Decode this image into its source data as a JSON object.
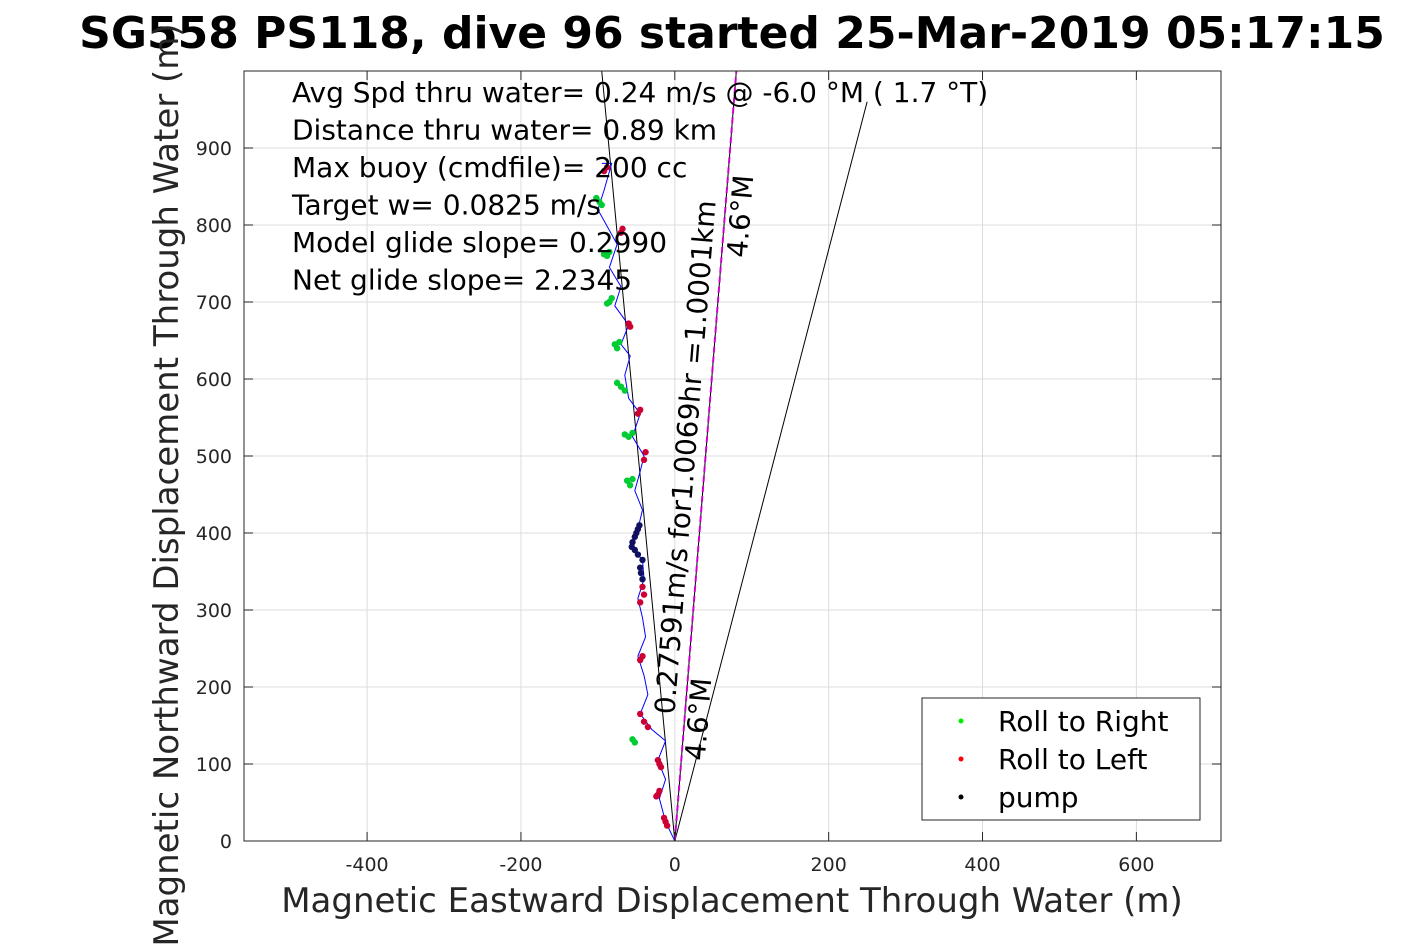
{
  "chart_data": {
    "type": "line",
    "title": "SG558 PS118, dive 96 started 25-Mar-2019 05:17:15",
    "xlabel": "Magnetic Eastward Displacement Through Water (m)",
    "ylabel": "Magnetic Northward Displacement Through Water (m)",
    "xlim": [
      -560,
      710
    ],
    "ylim": [
      0,
      1000
    ],
    "xticks": [
      -400,
      -200,
      0,
      200,
      400,
      600
    ],
    "xtick_labels": [
      "-400",
      "-200",
      "0",
      "200",
      "400",
      "600"
    ],
    "yticks": [
      0,
      100,
      200,
      300,
      400,
      500,
      600,
      700,
      800,
      900
    ],
    "ytick_labels": [
      "0",
      "100",
      "200",
      "300",
      "400",
      "500",
      "600",
      "700",
      "800",
      "900"
    ],
    "grid": true,
    "annotations": [
      "Avg Spd thru water=  0.24 m/s @  -6.0 °M (  1.7 °T)",
      "Distance thru water=  0.89 km",
      "Max buoy (cmdfile)= 200 cc",
      "Target w= 0.0825 m/s",
      "Model glide slope= 0.2990",
      "Net glide slope= 2.2345"
    ],
    "rotated_labels": {
      "current_speed": "0.27591m/s for1.0069hr =1.0001km",
      "heading_upper": "4.6°M",
      "heading_lower": "4.6°M"
    },
    "reference_lines": [
      {
        "from": [
          0,
          0
        ],
        "to": [
          -95,
          1000
        ],
        "color": "#000000"
      },
      {
        "from": [
          0,
          0
        ],
        "to": [
          80,
          1000
        ],
        "color": "#000000"
      },
      {
        "from": [
          0,
          0
        ],
        "to": [
          250,
          960
        ],
        "color": "#000000"
      },
      {
        "from": [
          0,
          0
        ],
        "to": [
          80,
          1000
        ],
        "color": "#cc00cc",
        "style": "dashed"
      }
    ],
    "track": {
      "name": "track",
      "color": "#0000ff",
      "points": [
        [
          0,
          0
        ],
        [
          -12,
          25
        ],
        [
          -20,
          55
        ],
        [
          -12,
          80
        ],
        [
          -22,
          105
        ],
        [
          -12,
          130
        ],
        [
          -30,
          145
        ],
        [
          -45,
          165
        ],
        [
          -35,
          190
        ],
        [
          -40,
          215
        ],
        [
          -48,
          240
        ],
        [
          -38,
          265
        ],
        [
          -42,
          290
        ],
        [
          -48,
          315
        ],
        [
          -40,
          340
        ],
        [
          -42,
          365
        ],
        [
          -55,
          380
        ],
        [
          -48,
          405
        ],
        [
          -42,
          430
        ],
        [
          -52,
          455
        ],
        [
          -45,
          480
        ],
        [
          -40,
          500
        ],
        [
          -55,
          525
        ],
        [
          -45,
          555
        ],
        [
          -60,
          575
        ],
        [
          -65,
          605
        ],
        [
          -58,
          630
        ],
        [
          -70,
          645
        ],
        [
          -60,
          670
        ],
        [
          -78,
          695
        ],
        [
          -70,
          720
        ],
        [
          -85,
          745
        ],
        [
          -75,
          775
        ],
        [
          -100,
          820
        ],
        [
          -92,
          845
        ],
        [
          -82,
          880
        ],
        [
          -95,
          880
        ]
      ]
    },
    "legend": {
      "position": "bottom-right",
      "entries": [
        {
          "label": "Roll to Right",
          "color": "#00ee00"
        },
        {
          "label": "Roll to Left",
          "color": "#ff0000"
        },
        {
          "label": "pump",
          "color": "#000000"
        }
      ]
    },
    "series": [
      {
        "name": "Roll to Right",
        "color": "#00cc33",
        "points": [
          [
            -55,
            132
          ],
          [
            -52,
            128
          ],
          [
            -62,
            468
          ],
          [
            -58,
            462
          ],
          [
            -55,
            470
          ],
          [
            -60,
            525
          ],
          [
            -55,
            530
          ],
          [
            -65,
            528
          ],
          [
            -70,
            590
          ],
          [
            -65,
            585
          ],
          [
            -75,
            595
          ],
          [
            -75,
            640
          ],
          [
            -72,
            648
          ],
          [
            -78,
            645
          ],
          [
            -85,
            700
          ],
          [
            -82,
            705
          ],
          [
            -88,
            698
          ],
          [
            -88,
            760
          ],
          [
            -85,
            765
          ],
          [
            -92,
            762
          ],
          [
            -98,
            830
          ],
          [
            -102,
            835
          ],
          [
            -95,
            826
          ]
        ]
      },
      {
        "name": "Roll to Left",
        "color": "#cc0033",
        "points": [
          [
            -12,
            25
          ],
          [
            -14,
            30
          ],
          [
            -10,
            20
          ],
          [
            -22,
            60
          ],
          [
            -20,
            65
          ],
          [
            -24,
            58
          ],
          [
            -20,
            100
          ],
          [
            -18,
            96
          ],
          [
            -22,
            105
          ],
          [
            -45,
            165
          ],
          [
            -40,
            155
          ],
          [
            -35,
            148
          ],
          [
            -42,
            240
          ],
          [
            -45,
            235
          ],
          [
            -40,
            320
          ],
          [
            -42,
            330
          ],
          [
            -45,
            310
          ],
          [
            -38,
            505
          ],
          [
            -40,
            495
          ],
          [
            -48,
            555
          ],
          [
            -45,
            560
          ],
          [
            -58,
            668
          ],
          [
            -60,
            672
          ],
          [
            -70,
            790
          ],
          [
            -68,
            795
          ],
          [
            -92,
            870
          ],
          [
            -88,
            875
          ]
        ]
      },
      {
        "name": "pump",
        "color": "#101060",
        "points": [
          [
            -45,
            355
          ],
          [
            -42,
            365
          ],
          [
            -48,
            372
          ],
          [
            -52,
            378
          ],
          [
            -56,
            382
          ],
          [
            -55,
            388
          ],
          [
            -52,
            395
          ],
          [
            -50,
            400
          ],
          [
            -48,
            405
          ],
          [
            -46,
            410
          ],
          [
            -44,
            348
          ],
          [
            -42,
            340
          ]
        ]
      }
    ]
  }
}
